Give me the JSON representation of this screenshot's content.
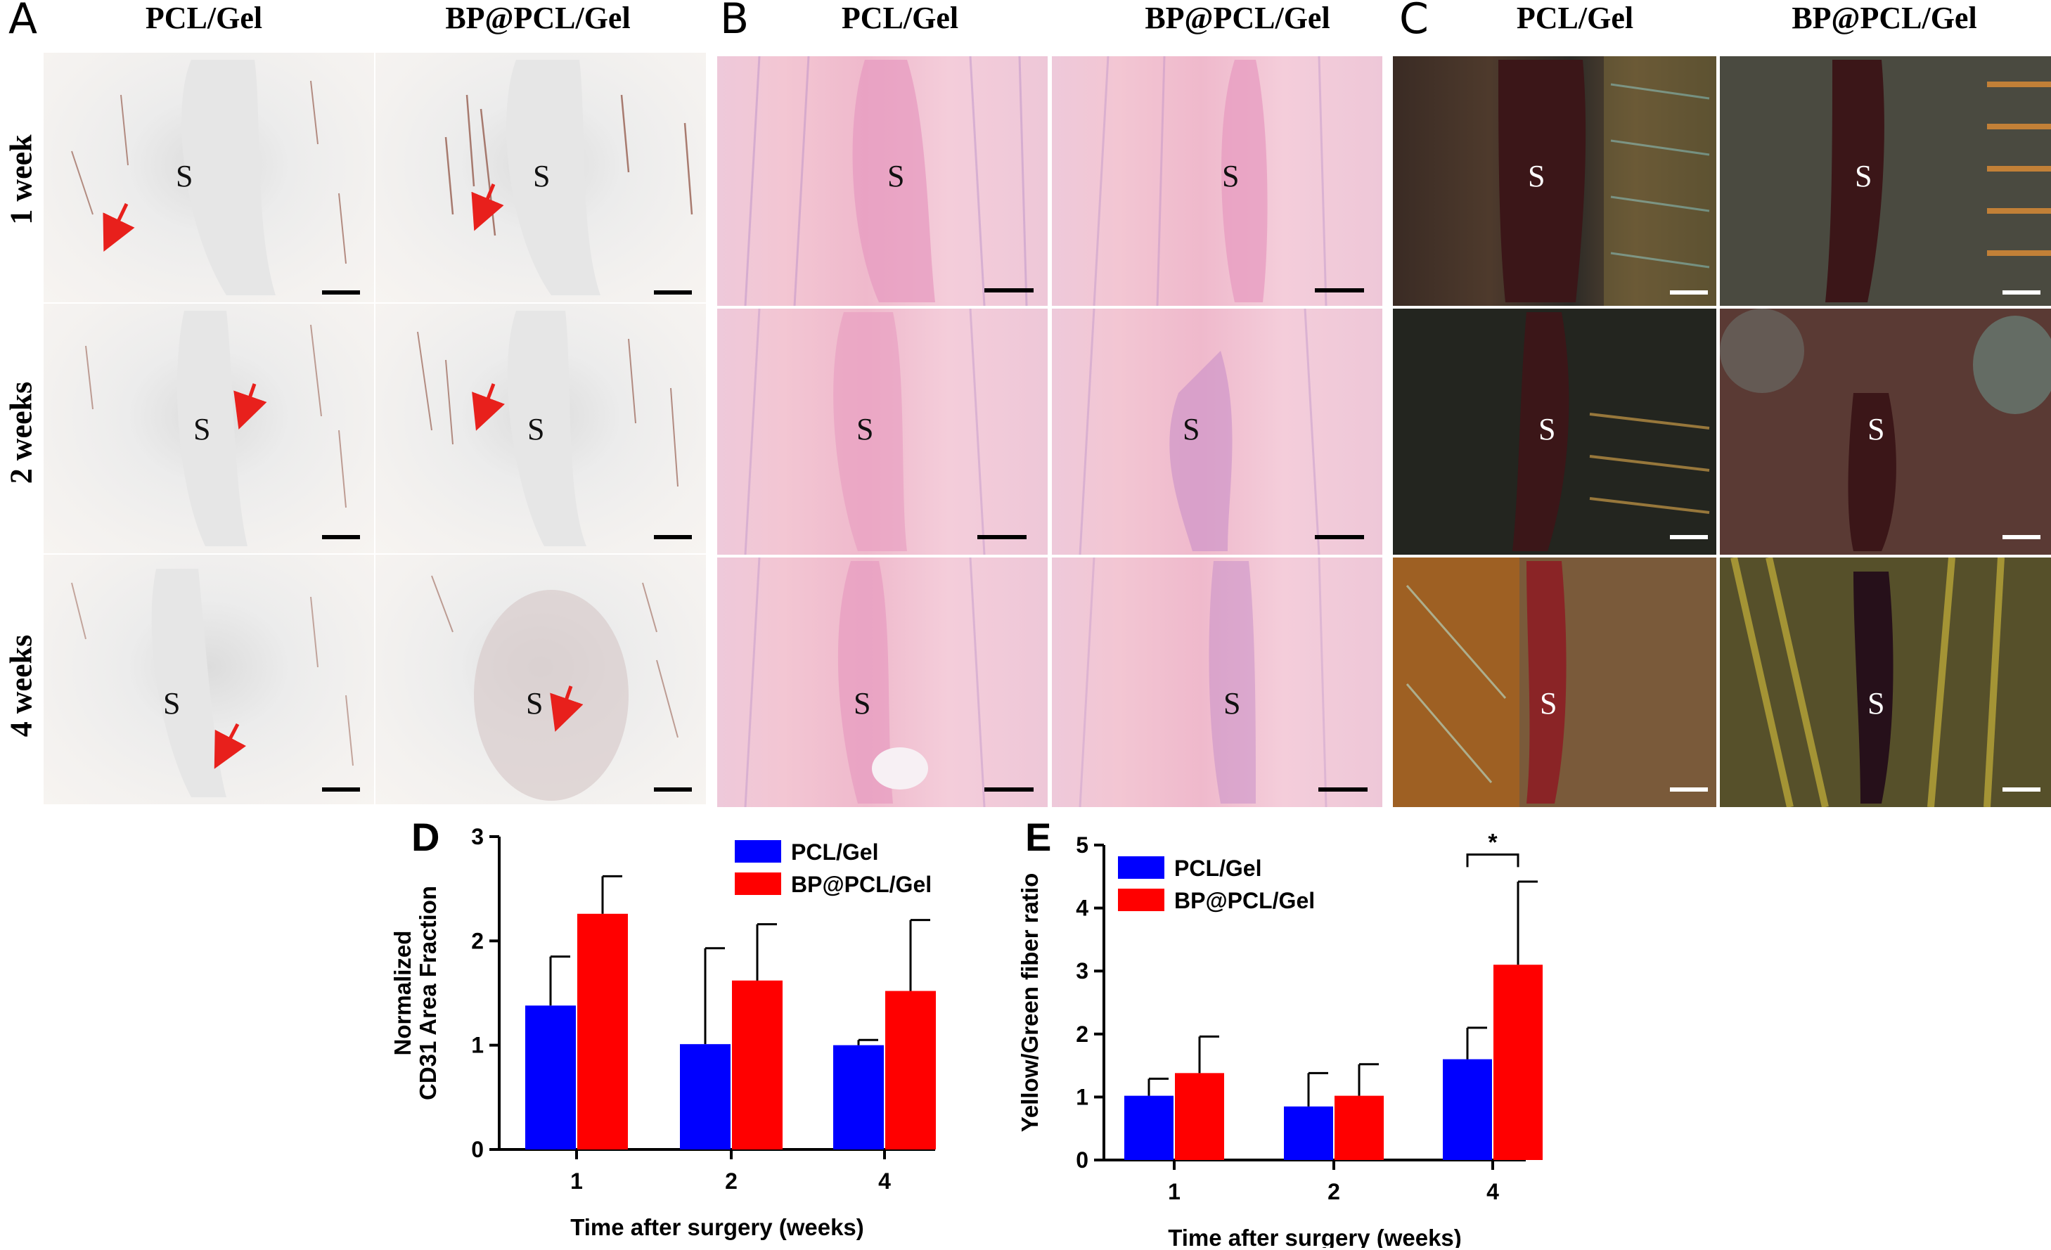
{
  "panels": {
    "A": {
      "letter": "A",
      "columns": [
        "PCL/Gel",
        "BP@PCL/Gel"
      ],
      "rows": [
        "1 week",
        "2 weeks",
        "4 weeks"
      ],
      "sample_label": "S"
    },
    "B": {
      "letter": "B",
      "columns": [
        "PCL/Gel",
        "BP@PCL/Gel"
      ],
      "sample_label": "S"
    },
    "C": {
      "letter": "C",
      "columns": [
        "PCL/Gel",
        "BP@PCL/Gel"
      ],
      "sample_label": "S"
    }
  },
  "colors": {
    "arrow": "#e8201c",
    "pcl_bar": "#0000ff",
    "bp_bar": "#ff0000"
  },
  "chart_data": [
    {
      "panel": "D",
      "type": "bar",
      "categories": [
        "1",
        "2",
        "4"
      ],
      "series": [
        {
          "name": "PCL/Gel",
          "values": [
            1.38,
            1.01,
            1.0
          ],
          "errors": [
            0.47,
            0.92,
            0.05
          ],
          "color": "#0000ff"
        },
        {
          "name": "BP@PCL/Gel",
          "values": [
            2.26,
            1.62,
            1.52
          ],
          "errors": [
            0.36,
            0.54,
            0.68
          ],
          "color": "#ff0000"
        }
      ],
      "xlabel": "Time after surgery (weeks)",
      "ylabel_line1": "Normalized",
      "ylabel_line2": "CD31 Area Fraction",
      "ylim": [
        0,
        3
      ],
      "yticks": [
        "0",
        "1",
        "2",
        "3"
      ],
      "legend": "top-right"
    },
    {
      "panel": "E",
      "type": "bar",
      "categories": [
        "1",
        "2",
        "4"
      ],
      "series": [
        {
          "name": "PCL/Gel",
          "values": [
            1.02,
            0.85,
            1.6
          ],
          "errors": [
            0.27,
            0.53,
            0.5
          ],
          "color": "#0000ff"
        },
        {
          "name": "BP@PCL/Gel",
          "values": [
            1.38,
            1.02,
            3.1
          ],
          "errors": [
            0.58,
            0.5,
            1.32
          ],
          "color": "#ff0000"
        }
      ],
      "xlabel": "Time after surgery (weeks)",
      "ylabel": "Yellow/Green fiber ratio",
      "ylim": [
        0,
        5
      ],
      "yticks": [
        "0",
        "1",
        "2",
        "3",
        "4",
        "5"
      ],
      "significance": "*",
      "legend": "top-left"
    }
  ]
}
